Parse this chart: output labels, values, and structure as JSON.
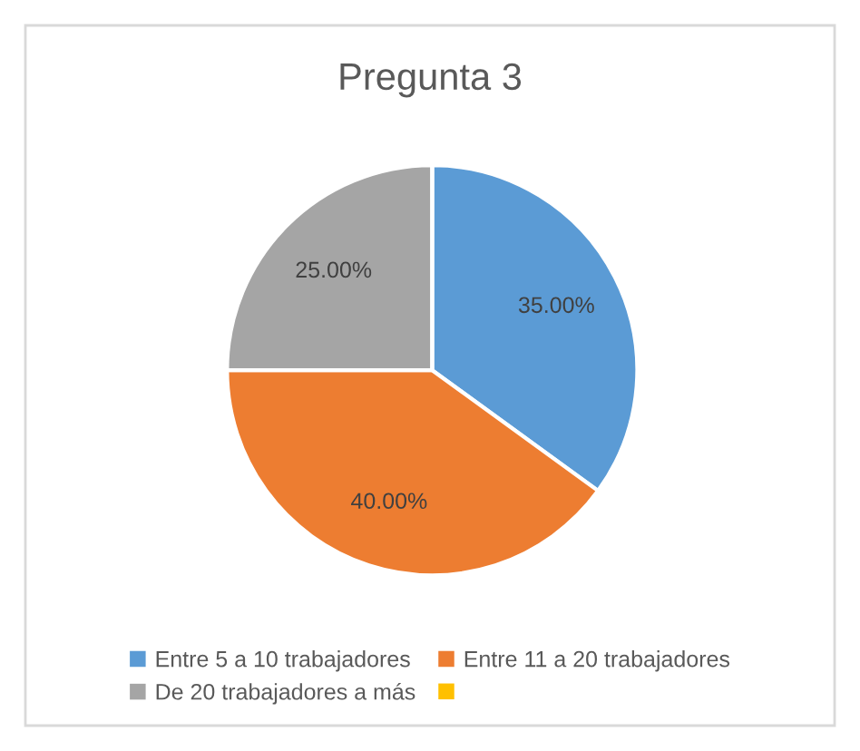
{
  "chart_data": {
    "type": "pie",
    "title": "Pregunta 3",
    "categories": [
      "Entre 5 a 10 trabajadores",
      "Entre 11 a 20 trabajadores",
      "De 20 trabajadores a más",
      null
    ],
    "values": [
      35,
      40,
      25,
      0
    ],
    "colors": [
      "#5b9bd5",
      "#ed7d31",
      "#a5a5a5",
      "#ffc000"
    ],
    "value_labels": [
      "35.00%",
      "40.00%",
      "25.00%",
      null
    ],
    "legend": "bottom"
  }
}
